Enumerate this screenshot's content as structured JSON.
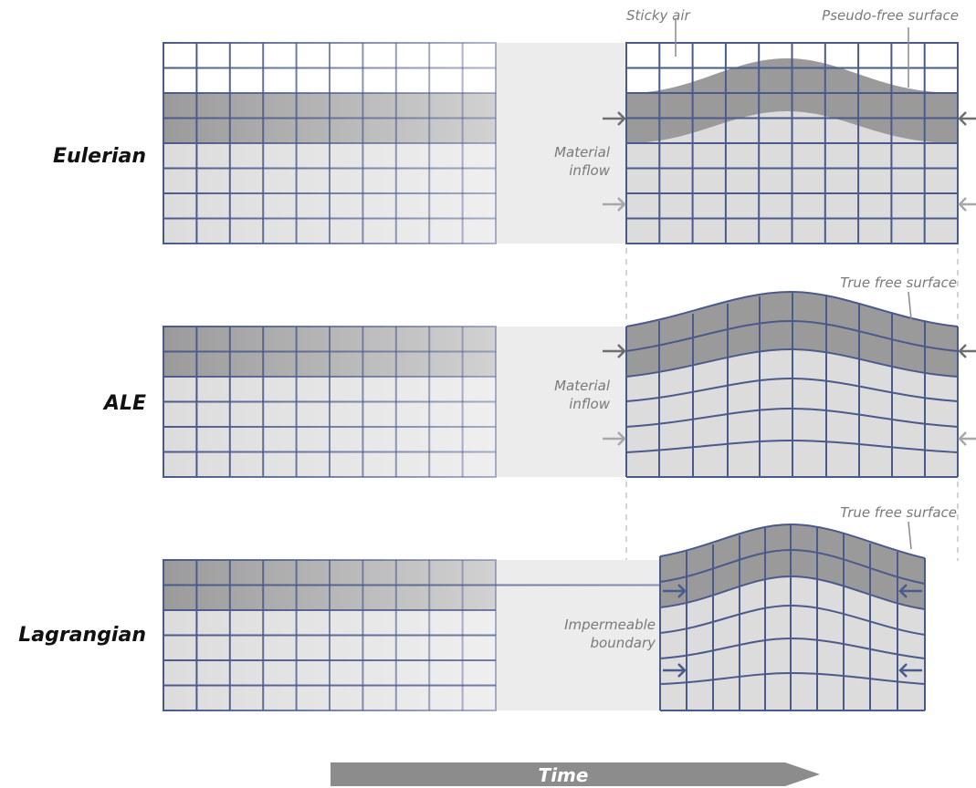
{
  "rows": [
    {
      "id": "eulerian",
      "label": "Eulerian",
      "inflow_label": [
        "Material",
        "inflow"
      ]
    },
    {
      "id": "ale",
      "label": "ALE",
      "inflow_label": [
        "Material",
        "inflow"
      ]
    },
    {
      "id": "lagrangian",
      "label": "Lagrangian",
      "boundary_label": [
        "Impermeable",
        "boundary"
      ]
    }
  ],
  "annotations": {
    "sticky_air": "Sticky air",
    "pseudo_free_surface": "Pseudo-free surface",
    "true_free_surface_ale": "True free surface",
    "true_free_surface_lagrangian": "True free surface"
  },
  "time_arrow": {
    "label": "Time"
  },
  "colors": {
    "grid_line": "#4a5a8c",
    "material_light": "#dcdcdc",
    "material_dark": "#9a9a9a",
    "connector": "#ececec",
    "arrow_dark": "#6e6e6e",
    "arrow_light": "#a8a8a8",
    "time_arrow": "#8c8c8c"
  },
  "icons": {
    "inflow_arrow": "arrow-right-icon",
    "boundary_arrow": "arrow-icon"
  }
}
